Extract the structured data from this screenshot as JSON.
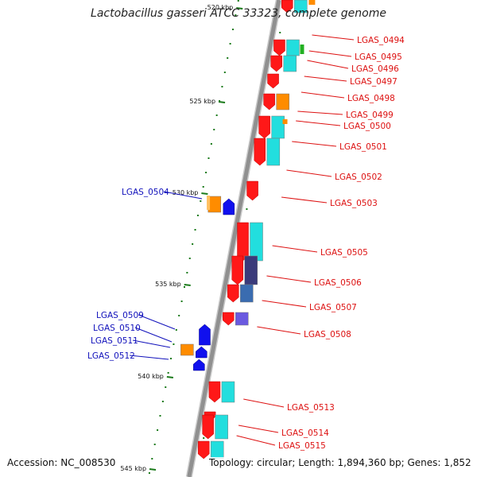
{
  "title": "Lactobacillus gasseri ATCC 33323, complete genome",
  "accession": "Accession: NC_008530",
  "topology": "Topology: circular; Length: 1,894,360 bp; Genes: 1,852",
  "colors": {
    "backbone": "#909090",
    "forward_label": "#dd1111",
    "reverse_label": "#1111bb",
    "tick": "#1a7a1a",
    "cds_forward": "#ff1818",
    "cds_reverse": "#1010ee",
    "cog_cyan": "#22dede",
    "cog_orange": "#ff8c00",
    "cog_blue": "#1840d8",
    "cog_navy": "#3a3a7a",
    "cog_steel": "#3a6cb0",
    "cog_purple": "#6a5ae0",
    "cog_green": "#22b022"
  },
  "scale_labels": [
    {
      "text": "520 kbp"
    },
    {
      "text": "525 kbp"
    },
    {
      "text": "530 kbp"
    },
    {
      "text": "535 kbp"
    },
    {
      "text": "540 kbp"
    },
    {
      "text": "545 kbp"
    }
  ],
  "forward_genes": [
    "LGAS_0494",
    "LGAS_0495",
    "LGAS_0496",
    "LGAS_0497",
    "LGAS_0498",
    "LGAS_0499",
    "LGAS_0500",
    "LGAS_0501",
    "LGAS_0502",
    "LGAS_0503",
    "LGAS_0505",
    "LGAS_0506",
    "LGAS_0507",
    "LGAS_0508",
    "LGAS_0513",
    "LGAS_0514",
    "LGAS_0515"
  ],
  "reverse_genes": [
    "LGAS_0504",
    "LGAS_0509",
    "LGAS_0510",
    "LGAS_0511",
    "LGAS_0512"
  ]
}
